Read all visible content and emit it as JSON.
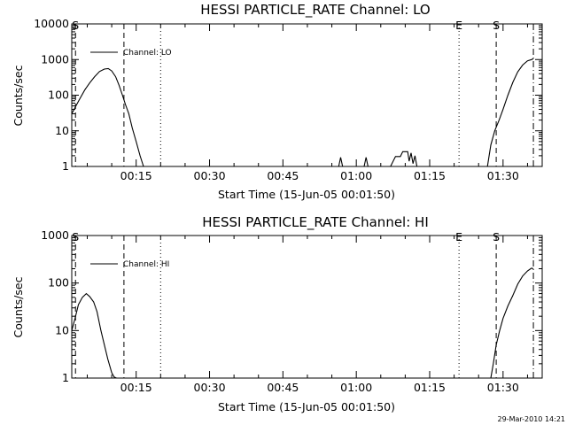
{
  "footer": {
    "timestamp": "29-Mar-2010 14:21"
  },
  "chart_data": [
    {
      "type": "line",
      "title": "HESSI PARTICLE_RATE Channel: LO",
      "xlabel": "Start Time (15-Jun-05 00:01:50)",
      "ylabel": "Counts/sec",
      "yscale": "log",
      "xlim_min": [
        1.8333,
        98.0
      ],
      "ylim": [
        1,
        10000
      ],
      "ytick_values": [
        1,
        10,
        100,
        1000,
        10000
      ],
      "ytick_labels": [
        "1",
        "10",
        "100",
        "1000",
        "10000"
      ],
      "xtick_values": [
        15,
        30,
        45,
        60,
        75,
        90
      ],
      "xtick_labels": [
        "00:15",
        "00:30",
        "00:45",
        "01:00",
        "01:15",
        "01:30"
      ],
      "legend": {
        "placement": "top-left",
        "entries": [
          "Channel: LO"
        ]
      },
      "markers": [
        {
          "x": 2.6,
          "label": "S",
          "style": "dashed"
        },
        {
          "x": 12.5,
          "label": "",
          "style": "dashed"
        },
        {
          "x": 20.0,
          "label": "",
          "style": "dotted"
        },
        {
          "x": 81.0,
          "label": "E",
          "style": "dotted"
        },
        {
          "x": 88.6,
          "label": "S",
          "style": "dashed"
        },
        {
          "x": 96.2,
          "label": "",
          "style": "dashdot"
        }
      ],
      "series": [
        {
          "name": "Channel: LO",
          "segments": [
            {
              "x": [
                1.83,
                2.5,
                3.5,
                4.5,
                5.5,
                6.5,
                7.5,
                8.5,
                9.3,
                10.0,
                10.8,
                11.5,
                12.2,
                12.8,
                13.5,
                14.2,
                15.0,
                15.8,
                16.5
              ],
              "y": [
                30,
                45,
                80,
                140,
                220,
                330,
                460,
                540,
                560,
                480,
                330,
                190,
                100,
                55,
                30,
                12,
                5,
                2,
                1
              ]
            },
            {
              "x": [
                56.4,
                56.8,
                57.2
              ],
              "y": [
                1,
                1.8,
                1
              ]
            },
            {
              "x": [
                61.6,
                62.0,
                62.4
              ],
              "y": [
                1,
                1.8,
                1
              ]
            },
            {
              "x": [
                67.0,
                68.0,
                69.0,
                69.5,
                70.5,
                70.8,
                71.2,
                71.6,
                72.0,
                72.4
              ],
              "y": [
                1,
                1.9,
                1.9,
                2.6,
                2.6,
                1.4,
                2.4,
                1.2,
                2.0,
                1
              ]
            },
            {
              "x": [
                86.8,
                87.5,
                88.3,
                89.2,
                90.0,
                91.0,
                92.0,
                93.0,
                94.0,
                95.0,
                95.8,
                96.2
              ],
              "y": [
                1,
                4,
                10,
                20,
                40,
                100,
                230,
                450,
                700,
                920,
                1000,
                1050
              ]
            }
          ]
        }
      ]
    },
    {
      "type": "line",
      "title": "HESSI PARTICLE_RATE Channel: HI",
      "xlabel": "Start Time (15-Jun-05 00:01:50)",
      "ylabel": "Counts/sec",
      "yscale": "log",
      "xlim_min": [
        1.8333,
        98.0
      ],
      "ylim": [
        1,
        1000
      ],
      "ytick_values": [
        1,
        10,
        100,
        1000
      ],
      "ytick_labels": [
        "1",
        "10",
        "100",
        "1000"
      ],
      "xtick_values": [
        15,
        30,
        45,
        60,
        75,
        90
      ],
      "xtick_labels": [
        "00:15",
        "00:30",
        "00:45",
        "01:00",
        "01:15",
        "01:30"
      ],
      "legend": {
        "placement": "top-left",
        "entries": [
          "Channel: HI"
        ]
      },
      "markers": [
        {
          "x": 2.6,
          "label": "S",
          "style": "dashed"
        },
        {
          "x": 12.5,
          "label": "",
          "style": "dashed"
        },
        {
          "x": 20.0,
          "label": "",
          "style": "dotted"
        },
        {
          "x": 81.0,
          "label": "E",
          "style": "dotted"
        },
        {
          "x": 88.6,
          "label": "S",
          "style": "dashed"
        },
        {
          "x": 96.2,
          "label": "",
          "style": "dashdot"
        }
      ],
      "series": [
        {
          "name": "Channel: HI",
          "segments": [
            {
              "x": [
                1.83,
                2.5,
                3.2,
                4.0,
                4.8,
                5.5,
                6.3,
                7.0,
                7.8,
                8.5,
                9.2,
                10.0,
                10.5,
                11.0
              ],
              "y": [
                10,
                18,
                35,
                50,
                60,
                52,
                40,
                25,
                10,
                5,
                2.5,
                1.3,
                1.05,
                1
              ]
            },
            {
              "x": [
                87.5,
                88.0,
                88.6,
                89.3,
                90.0,
                91.0,
                92.0,
                93.0,
                94.0,
                95.0,
                95.8,
                96.2
              ],
              "y": [
                1,
                2,
                5,
                10,
                18,
                33,
                55,
                95,
                140,
                180,
                205,
                200
              ]
            }
          ]
        }
      ]
    }
  ]
}
